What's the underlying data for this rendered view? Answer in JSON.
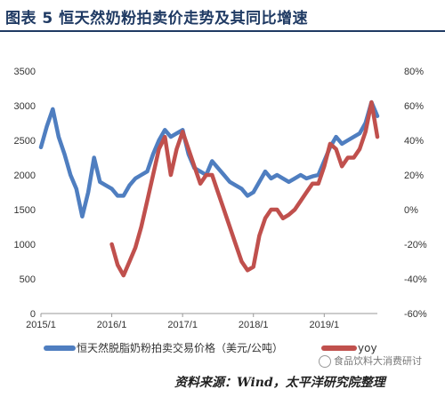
{
  "title": "图表 5 恒天然奶粉拍卖价走势及其同比增速",
  "source": "资料来源：Wind，太平洋研究院整理",
  "watermark": "食品饮料大消费研讨",
  "colors": {
    "price": "#4f7ec0",
    "yoy": "#c0504d",
    "title": "#1f3a63"
  },
  "chart_data": {
    "type": "line",
    "xlim": [
      "2015-01",
      "2019-10"
    ],
    "x_ticks": [
      "2015/1",
      "2016/1",
      "2017/1",
      "2018/1",
      "2019/1"
    ],
    "y_left": {
      "ticks": [
        "0",
        "500",
        "1000",
        "1500",
        "2000",
        "2500",
        "3000",
        "3500"
      ],
      "lim": [
        0,
        3500
      ]
    },
    "y_right": {
      "ticks": [
        "-60%",
        "-40%",
        "-20%",
        "0%",
        "20%",
        "40%",
        "60%",
        "80%"
      ],
      "lim": [
        -60,
        80
      ]
    },
    "grid": false,
    "legend_position": "bottom",
    "series": [
      {
        "name": "恒天然脱脂奶粉拍卖交易价格（美元/公吨）",
        "axis": "left",
        "points": [
          [
            "2015-01",
            2400
          ],
          [
            "2015-02",
            2700
          ],
          [
            "2015-03",
            2950
          ],
          [
            "2015-04",
            2550
          ],
          [
            "2015-05",
            2300
          ],
          [
            "2015-06",
            2000
          ],
          [
            "2015-07",
            1800
          ],
          [
            "2015-08",
            1400
          ],
          [
            "2015-09",
            1750
          ],
          [
            "2015-10",
            2250
          ],
          [
            "2015-11",
            1900
          ],
          [
            "2015-12",
            1850
          ],
          [
            "2016-01",
            1800
          ],
          [
            "2016-02",
            1700
          ],
          [
            "2016-03",
            1700
          ],
          [
            "2016-04",
            1850
          ],
          [
            "2016-05",
            1950
          ],
          [
            "2016-06",
            2000
          ],
          [
            "2016-07",
            2050
          ],
          [
            "2016-08",
            2300
          ],
          [
            "2016-09",
            2500
          ],
          [
            "2016-10",
            2650
          ],
          [
            "2016-11",
            2550
          ],
          [
            "2016-12",
            2600
          ],
          [
            "2017-01",
            2650
          ],
          [
            "2017-02",
            2300
          ],
          [
            "2017-03",
            2100
          ],
          [
            "2017-04",
            2050
          ],
          [
            "2017-05",
            2000
          ],
          [
            "2017-06",
            2200
          ],
          [
            "2017-07",
            2100
          ],
          [
            "2017-08",
            2000
          ],
          [
            "2017-09",
            1900
          ],
          [
            "2017-10",
            1850
          ],
          [
            "2017-11",
            1800
          ],
          [
            "2017-12",
            1700
          ],
          [
            "2018-01",
            1750
          ],
          [
            "2018-02",
            1900
          ],
          [
            "2018-03",
            2050
          ],
          [
            "2018-04",
            1950
          ],
          [
            "2018-05",
            2000
          ],
          [
            "2018-06",
            1950
          ],
          [
            "2018-07",
            1900
          ],
          [
            "2018-08",
            1950
          ],
          [
            "2018-09",
            2000
          ],
          [
            "2018-10",
            1950
          ],
          [
            "2018-11",
            1980
          ],
          [
            "2018-12",
            2000
          ],
          [
            "2019-01",
            2200
          ],
          [
            "2019-02",
            2400
          ],
          [
            "2019-03",
            2550
          ],
          [
            "2019-04",
            2450
          ],
          [
            "2019-05",
            2500
          ],
          [
            "2019-06",
            2550
          ],
          [
            "2019-07",
            2600
          ],
          [
            "2019-08",
            2750
          ],
          [
            "2019-09",
            3050
          ],
          [
            "2019-10",
            2850
          ]
        ]
      },
      {
        "name": "yoy",
        "axis": "right",
        "points": [
          [
            "2016-01",
            -20
          ],
          [
            "2016-02",
            -32
          ],
          [
            "2016-03",
            -38
          ],
          [
            "2016-04",
            -30
          ],
          [
            "2016-05",
            -22
          ],
          [
            "2016-06",
            -10
          ],
          [
            "2016-07",
            5
          ],
          [
            "2016-08",
            20
          ],
          [
            "2016-09",
            35
          ],
          [
            "2016-10",
            42
          ],
          [
            "2016-11",
            20
          ],
          [
            "2016-12",
            35
          ],
          [
            "2017-01",
            45
          ],
          [
            "2017-02",
            35
          ],
          [
            "2017-03",
            25
          ],
          [
            "2017-04",
            15
          ],
          [
            "2017-05",
            20
          ],
          [
            "2017-06",
            20
          ],
          [
            "2017-07",
            10
          ],
          [
            "2017-08",
            0
          ],
          [
            "2017-09",
            -10
          ],
          [
            "2017-10",
            -20
          ],
          [
            "2017-11",
            -30
          ],
          [
            "2017-12",
            -35
          ],
          [
            "2018-01",
            -33
          ],
          [
            "2018-02",
            -15
          ],
          [
            "2018-03",
            -5
          ],
          [
            "2018-04",
            0
          ],
          [
            "2018-05",
            0
          ],
          [
            "2018-06",
            -5
          ],
          [
            "2018-07",
            -3
          ],
          [
            "2018-08",
            0
          ],
          [
            "2018-09",
            5
          ],
          [
            "2018-10",
            10
          ],
          [
            "2018-11",
            15
          ],
          [
            "2018-12",
            15
          ],
          [
            "2019-01",
            25
          ],
          [
            "2019-02",
            38
          ],
          [
            "2019-03",
            35
          ],
          [
            "2019-04",
            25
          ],
          [
            "2019-05",
            30
          ],
          [
            "2019-06",
            30
          ],
          [
            "2019-07",
            35
          ],
          [
            "2019-08",
            45
          ],
          [
            "2019-09",
            62
          ],
          [
            "2019-10",
            42
          ]
        ]
      }
    ]
  }
}
